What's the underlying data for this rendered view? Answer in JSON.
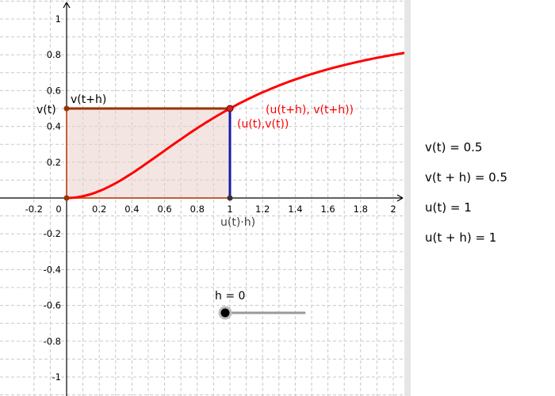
{
  "graphics": {
    "x_axis_ticks": [
      "-0.2",
      "0",
      "0.2",
      "0.4",
      "0.6",
      "0.8",
      "1",
      "1.2",
      "1.4",
      "1.6",
      "1.8",
      "2"
    ],
    "y_axis_ticks": [
      "1",
      "0.8",
      "0.6",
      "0.4",
      "0.2",
      "-0.2",
      "-0.4",
      "-0.6",
      "-0.8",
      "-1"
    ],
    "labels": {
      "v_t": "v(t)",
      "v_t_plus_h": "v(t+h)",
      "point_upper": "(u(t+h), v(t+h))",
      "point_lower": "(u(t),v(t))",
      "u_t_h": "u(t)·h)"
    },
    "slider": {
      "label": "h = 0",
      "value": 0
    },
    "colors": {
      "curve": "#ff0000",
      "top_edge": "#993300",
      "vertical_segment": "#1a1aa6",
      "fill": "#e9d2cb",
      "point": "#cc2222",
      "grid": "#c8c8c8"
    }
  },
  "algebra": {
    "items": [
      "v(t) = 0.5",
      "v(t + h) = 0.5",
      "u(t) = 1",
      "u(t + h) = 1"
    ]
  }
}
